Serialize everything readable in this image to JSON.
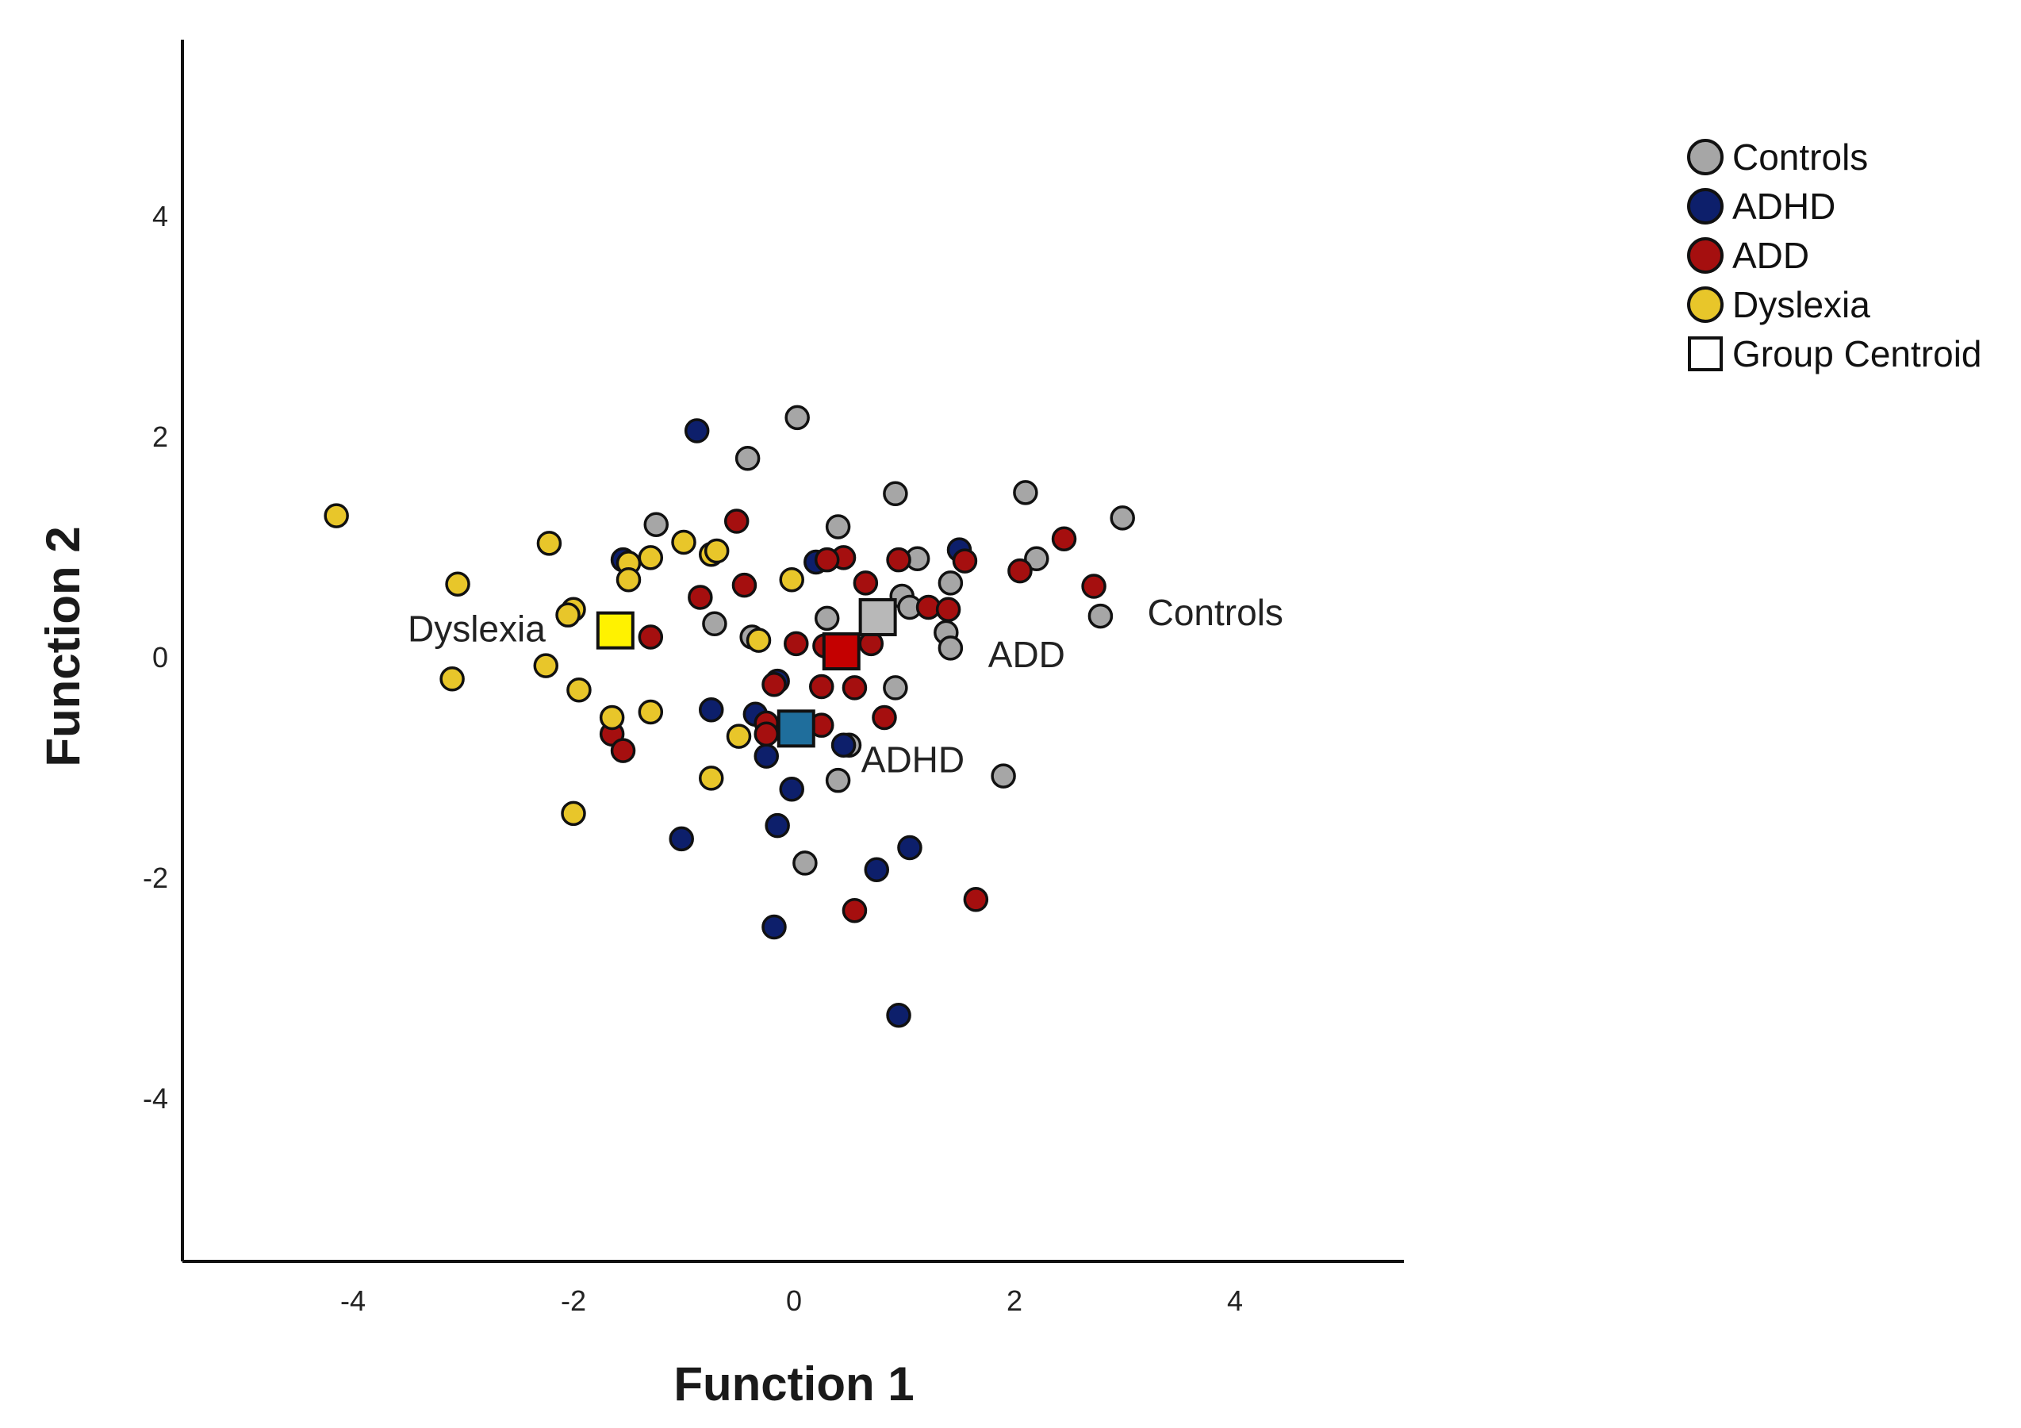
{
  "chart_data": {
    "type": "scatter",
    "title": "",
    "xlabel": "Function 1",
    "ylabel": "Function 2",
    "xlim": [
      -5.5,
      5.5
    ],
    "ylim": [
      -5.5,
      5.5
    ],
    "xticks": [
      -4,
      -2,
      0,
      2,
      4
    ],
    "yticks": [
      4,
      2,
      0,
      -2,
      -4
    ],
    "xtick_labels": [
      "-4",
      "-2",
      "0",
      "2",
      "4"
    ],
    "ytick_labels": [
      "4",
      "2",
      "0",
      "-2",
      "-4"
    ],
    "grid": false,
    "legend_position": "top-right",
    "legend": [
      {
        "label": "Controls",
        "marker": "circle",
        "color": "#A6A6A6"
      },
      {
        "label": "ADHD",
        "marker": "circle",
        "color": "#0D1F6B"
      },
      {
        "label": "ADD",
        "marker": "circle",
        "color": "#A50F0F"
      },
      {
        "label": "Dyslexia",
        "marker": "circle",
        "color": "#E8C62A"
      },
      {
        "label": "Group Centroid",
        "marker": "square",
        "color": "#FFFFFF"
      }
    ],
    "series": [
      {
        "name": "Controls",
        "color": "#A6A6A6",
        "points": [
          [
            0.03,
            2.17
          ],
          [
            -0.42,
            1.8
          ],
          [
            0.92,
            1.48
          ],
          [
            2.1,
            1.49
          ],
          [
            2.98,
            1.26
          ],
          [
            -1.25,
            1.2
          ],
          [
            0.4,
            1.18
          ],
          [
            1.12,
            0.89
          ],
          [
            2.2,
            0.89
          ],
          [
            1.42,
            0.67
          ],
          [
            0.98,
            0.55
          ],
          [
            1.05,
            0.45
          ],
          [
            0.3,
            0.35
          ],
          [
            1.38,
            0.22
          ],
          [
            1.42,
            0.08
          ],
          [
            2.78,
            0.37
          ],
          [
            -0.72,
            0.3
          ],
          [
            -0.38,
            0.18
          ],
          [
            0.92,
            -0.28
          ],
          [
            0.5,
            -0.8
          ],
          [
            0.4,
            -1.12
          ],
          [
            1.9,
            -1.08
          ],
          [
            0.1,
            -1.87
          ]
        ]
      },
      {
        "name": "ADHD",
        "color": "#0D1F6B",
        "points": [
          [
            -0.88,
            2.05
          ],
          [
            1.5,
            0.97
          ],
          [
            0.2,
            0.86
          ],
          [
            -1.55,
            0.88
          ],
          [
            -0.75,
            -0.48
          ],
          [
            -0.35,
            -0.52
          ],
          [
            -0.15,
            -0.22
          ],
          [
            -0.25,
            -0.9
          ],
          [
            0.45,
            -0.8
          ],
          [
            -0.02,
            -1.2
          ],
          [
            -0.15,
            -1.53
          ],
          [
            -1.02,
            -1.65
          ],
          [
            1.05,
            -1.73
          ],
          [
            0.75,
            -1.93
          ],
          [
            -0.18,
            -2.45
          ],
          [
            0.95,
            -3.25
          ]
        ]
      },
      {
        "name": "ADD",
        "color": "#A50F0F",
        "points": [
          [
            -0.52,
            1.23
          ],
          [
            2.45,
            1.07
          ],
          [
            0.45,
            0.9
          ],
          [
            0.3,
            0.88
          ],
          [
            0.95,
            0.88
          ],
          [
            1.55,
            0.87
          ],
          [
            2.05,
            0.78
          ],
          [
            2.72,
            0.64
          ],
          [
            -0.45,
            0.65
          ],
          [
            0.65,
            0.67
          ],
          [
            -0.85,
            0.54
          ],
          [
            1.22,
            0.45
          ],
          [
            1.4,
            0.43
          ],
          [
            -1.3,
            0.18
          ],
          [
            0.02,
            0.12
          ],
          [
            0.28,
            0.1
          ],
          [
            0.7,
            0.12
          ],
          [
            0.25,
            -0.27
          ],
          [
            0.55,
            -0.28
          ],
          [
            -0.18,
            -0.25
          ],
          [
            0.82,
            -0.55
          ],
          [
            -0.25,
            -0.6
          ],
          [
            0.25,
            -0.62
          ],
          [
            -0.25,
            -0.7
          ],
          [
            -1.65,
            -0.7
          ],
          [
            -1.55,
            -0.85
          ],
          [
            1.65,
            -2.2
          ],
          [
            0.55,
            -2.3
          ]
        ]
      },
      {
        "name": "Dyslexia",
        "color": "#E8C62A",
        "points": [
          [
            -4.15,
            1.28
          ],
          [
            -2.22,
            1.03
          ],
          [
            -1.0,
            1.04
          ],
          [
            -0.75,
            0.93
          ],
          [
            -0.7,
            0.96
          ],
          [
            -1.3,
            0.9
          ],
          [
            -1.5,
            0.85
          ],
          [
            -1.5,
            0.7
          ],
          [
            -3.05,
            0.66
          ],
          [
            -0.02,
            0.7
          ],
          [
            -2.0,
            0.43
          ],
          [
            -2.05,
            0.38
          ],
          [
            -0.32,
            0.15
          ],
          [
            -2.25,
            -0.08
          ],
          [
            -3.1,
            -0.2
          ],
          [
            -1.95,
            -0.3
          ],
          [
            -1.3,
            -0.5
          ],
          [
            -1.65,
            -0.55
          ],
          [
            -0.5,
            -0.72
          ],
          [
            -0.75,
            -1.1
          ],
          [
            -2.0,
            -1.42
          ]
        ]
      }
    ],
    "centroids": [
      {
        "group": "Dyslexia",
        "label": "Dyslexia",
        "x": -1.62,
        "y": 0.24,
        "color": "#FFF200",
        "label_side": "left"
      },
      {
        "group": "Controls",
        "label": "Controls",
        "x": 0.76,
        "y": 0.36,
        "color": "#B8B8B8",
        "label_side": "right"
      },
      {
        "group": "ADD",
        "label": "ADD",
        "x": 0.43,
        "y": 0.05,
        "color": "#C40000",
        "label_side": "right"
      },
      {
        "group": "ADHD",
        "label": "ADHD",
        "x": 0.02,
        "y": -0.65,
        "color": "#1F6E9C",
        "label_side": "right"
      }
    ]
  }
}
